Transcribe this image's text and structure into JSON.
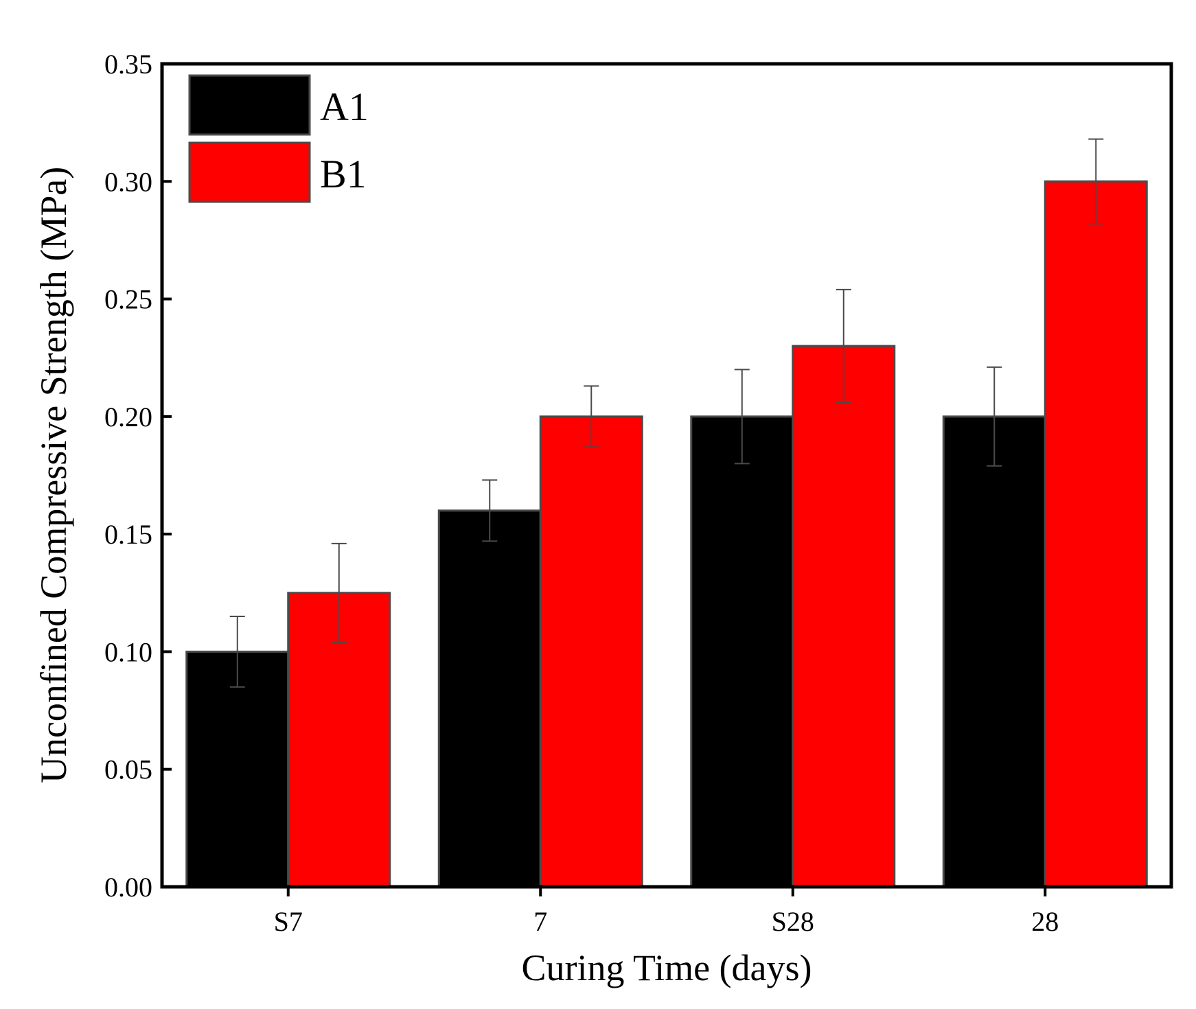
{
  "chart_data": {
    "type": "bar",
    "title": "",
    "xlabel": "Curing Time (days)",
    "ylabel": "Unconfined Compressive Strength (MPa)",
    "categories": [
      "S7",
      "7",
      "S28",
      "28"
    ],
    "series": [
      {
        "name": "A1",
        "color": "#000000",
        "values": [
          0.1,
          0.16,
          0.2,
          0.2
        ],
        "errors": [
          0.015,
          0.013,
          0.02,
          0.021
        ]
      },
      {
        "name": "B1",
        "color": "#ff0000",
        "values": [
          0.125,
          0.2,
          0.23,
          0.3
        ],
        "errors": [
          0.021,
          0.013,
          0.024,
          0.018
        ]
      }
    ],
    "ylim": [
      0,
      0.35
    ],
    "yticks": [
      "0.00",
      "0.05",
      "0.10",
      "0.15",
      "0.20",
      "0.25",
      "0.30",
      "0.35"
    ],
    "legend": "top-left",
    "grid": false
  }
}
